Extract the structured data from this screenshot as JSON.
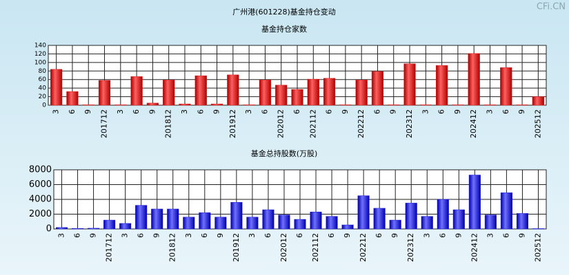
{
  "title": "广州港(601228)基金持仓变动",
  "watermark": "CFi.CN",
  "chart_data": [
    {
      "type": "bar",
      "title": "基金持仓家数",
      "color": "#e02020",
      "grid": true,
      "categories": [
        "3",
        "6",
        "9",
        "201712",
        "3",
        "6",
        "9",
        "201812",
        "3",
        "6",
        "9",
        "201912",
        "3",
        "6",
        "202012",
        "6",
        "202112",
        "6",
        "9",
        "202212",
        "6",
        "9",
        "202312",
        "3",
        "6",
        "9",
        "202412",
        "3",
        "6",
        "9",
        "202512"
      ],
      "values": [
        84,
        32,
        1,
        58,
        1,
        67,
        5,
        59,
        3,
        69,
        3,
        71,
        1,
        59,
        47,
        37,
        61,
        63,
        1,
        59,
        79,
        1,
        97,
        1,
        93,
        1,
        121,
        1,
        88,
        1,
        20
      ],
      "ylim": [
        0,
        140
      ],
      "yticks": [
        0,
        20,
        40,
        60,
        80,
        100,
        120,
        140
      ]
    },
    {
      "type": "bar",
      "title": "基金总持股数(万股)",
      "color": "#2020e0",
      "grid": true,
      "categories": [
        "3",
        "6",
        "9",
        "201712",
        "3",
        "6",
        "9",
        "201812",
        "3",
        "6",
        "9",
        "201912",
        "3",
        "6",
        "202012",
        "6",
        "202112",
        "6",
        "9",
        "202212",
        "6",
        "9",
        "202312",
        "3",
        "6",
        "9",
        "202412",
        "3",
        "6",
        "9",
        "202512"
      ],
      "values": [
        200,
        80,
        100,
        1200,
        750,
        3200,
        2700,
        2700,
        1600,
        2200,
        1600,
        3600,
        1600,
        2600,
        1900,
        1300,
        2300,
        1700,
        550,
        4500,
        2800,
        1200,
        3500,
        1700,
        4000,
        2600,
        7300,
        1900,
        4900,
        2100,
        50
      ],
      "ylim": [
        0,
        8000
      ],
      "yticks": [
        0,
        2000,
        4000,
        6000,
        8000
      ]
    }
  ]
}
